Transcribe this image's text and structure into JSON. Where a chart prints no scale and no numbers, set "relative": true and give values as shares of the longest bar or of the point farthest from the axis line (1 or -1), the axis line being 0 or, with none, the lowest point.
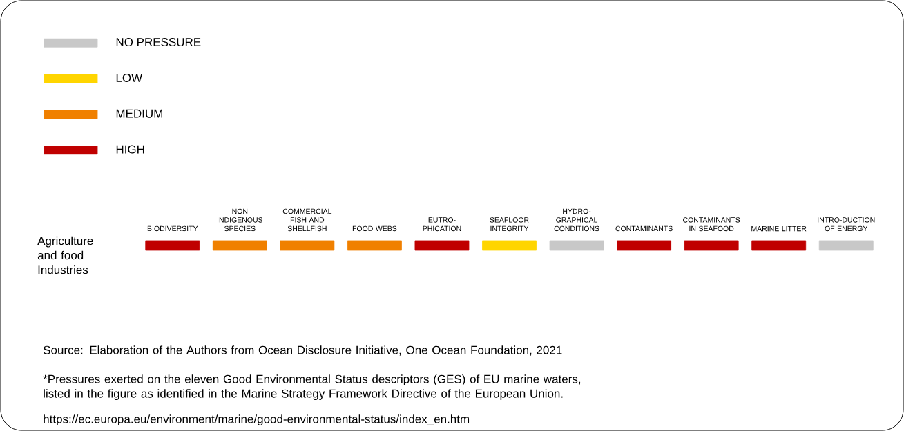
{
  "chart_data": {
    "type": "bar",
    "relative": true,
    "categories": [
      "BIODIVERSITY",
      "NON INDIGENOUS SPECIES",
      "COMMERCIAL FISH AND SHELLFISH",
      "FOOD WEBS",
      "EUTRO-PHICATION",
      "SEAFLOOR INTEGRITY",
      "HYDRO-GRAPHICAL CONDITIONS",
      "CONTAMINANTS",
      "CONTAMINANTS IN SEAFOOD",
      "MARINE LITTER",
      "INTRO-DUCTION OF ENERGY"
    ],
    "ylabel": "Agriculture and food Industries",
    "series": [
      {
        "name": "NO PRESSURE",
        "color": "#c8c8c8",
        "values": [
          null,
          null,
          null,
          null,
          null,
          null,
          1,
          null,
          null,
          null,
          1
        ]
      },
      {
        "name": "LOW",
        "color": "#ffd500",
        "values": [
          null,
          null,
          null,
          null,
          null,
          1,
          null,
          null,
          null,
          null,
          null
        ]
      },
      {
        "name": "MEDIUM",
        "color": "#f08000",
        "values": [
          null,
          1,
          1,
          1,
          null,
          null,
          null,
          null,
          null,
          null,
          null
        ]
      },
      {
        "name": "HIGH",
        "color": "#c00000",
        "values": [
          1,
          null,
          null,
          null,
          1,
          null,
          null,
          1,
          1,
          1,
          null
        ]
      }
    ],
    "legend": "top left",
    "annotations": [
      "Source: Elaboration of the Authors from Ocean Disclosure Initiative, One Ocean Foundation, 2021",
      "*Pressures exerted on the eleven Good Environmental Status descriptors (GES) of EU marine waters, listed in the figure as identified in the Marine Strategy Framework Directive of the European Union.",
      "https://ec.europa.eu/environment/marine/good-environmental-status/index_en.htm"
    ]
  }
}
